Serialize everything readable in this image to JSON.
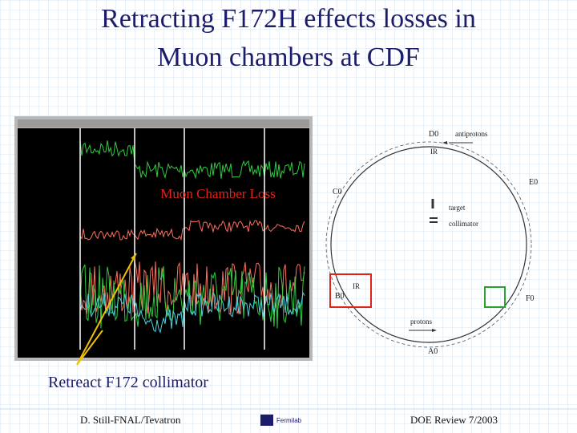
{
  "header": {
    "title_lines": [
      "Retracting F172H effects losses in",
      "Muon chambers at CDF"
    ]
  },
  "screenshot": {
    "annotation": "Muon Chamber Loss"
  },
  "diagram": {
    "labels": {
      "d0": "D0",
      "antiprotons": "antiprotons",
      "ir_top": "IR",
      "e0": "E0",
      "c0": "C0",
      "target": "target",
      "collimator": "collimator",
      "ir_bottom": "IR",
      "b0": "B0",
      "f0": "F0",
      "protons": "protons",
      "a0": "A0"
    }
  },
  "caption": "Retreact F172 collimator",
  "footer": {
    "left": "D. Still-FNAL/Tevatron",
    "logo": "Fermilab",
    "right": "DOE Review 7/2003"
  }
}
